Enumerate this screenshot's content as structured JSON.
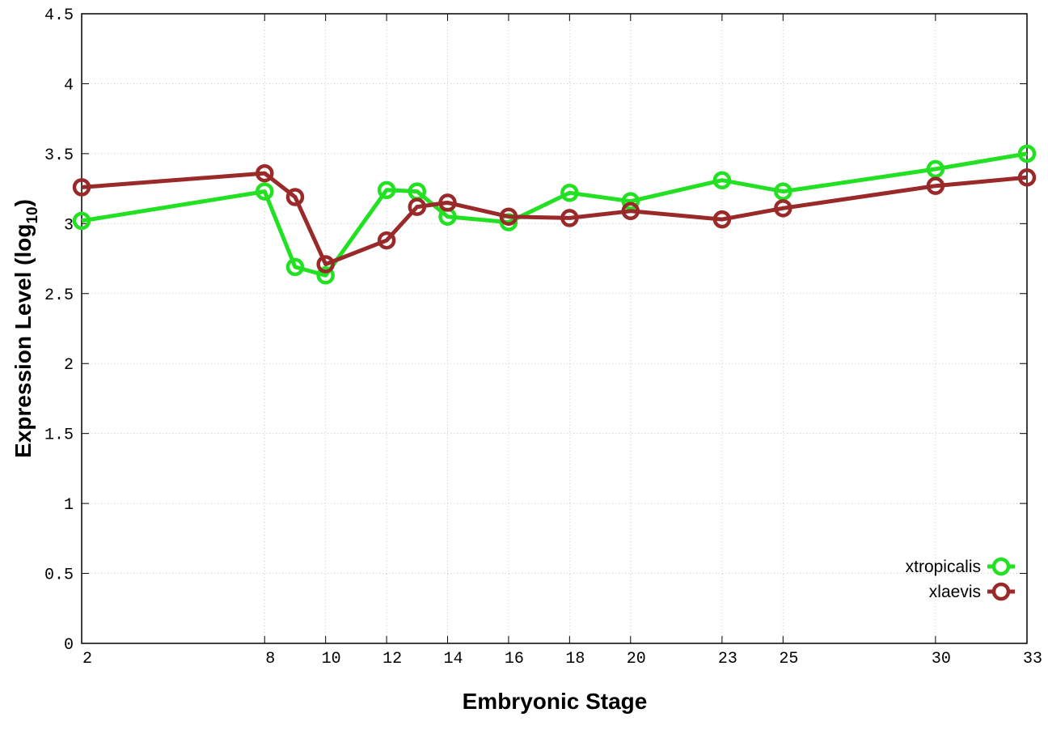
{
  "chart_data": {
    "type": "line",
    "xlabel": "Embryonic Stage",
    "ylabel_main": "Expression Level (log",
    "ylabel_sub": "10",
    "ylabel_close": ")",
    "xlim": [
      2,
      33
    ],
    "ylim": [
      0,
      4.5
    ],
    "x_ticks": [
      2,
      8,
      10,
      12,
      14,
      16,
      18,
      20,
      23,
      25,
      30,
      33
    ],
    "y_ticks": [
      {
        "value": 0,
        "label": "0"
      },
      {
        "value": 0.5,
        "label": "0.5"
      },
      {
        "value": 1,
        "label": "1"
      },
      {
        "value": 1.5,
        "label": "1.5"
      },
      {
        "value": 2,
        "label": "2"
      },
      {
        "value": 2.5,
        "label": "2.5"
      },
      {
        "value": 3,
        "label": "3"
      },
      {
        "value": 3.5,
        "label": "3.5"
      },
      {
        "value": 4,
        "label": "4"
      },
      {
        "value": 4.5,
        "label": "4.5"
      }
    ],
    "grid": true,
    "legend_position": "bottom-right",
    "series": [
      {
        "name": "xtropicalis",
        "color": "#22e022",
        "x": [
          2,
          8,
          9,
          10,
          12,
          13,
          14,
          16,
          18,
          20,
          23,
          25,
          30,
          33
        ],
        "y": [
          3.02,
          3.23,
          2.69,
          2.63,
          3.24,
          3.23,
          3.05,
          3.01,
          3.22,
          3.16,
          3.31,
          3.23,
          3.39,
          3.5
        ]
      },
      {
        "name": "xlaevis",
        "color": "#9a2a2a",
        "x": [
          2,
          8,
          9,
          10,
          12,
          13,
          14,
          16,
          18,
          20,
          23,
          25,
          30,
          33
        ],
        "y": [
          3.26,
          3.36,
          3.19,
          2.71,
          2.88,
          3.12,
          3.15,
          3.05,
          3.04,
          3.09,
          3.03,
          3.11,
          3.27,
          3.33
        ]
      }
    ]
  }
}
